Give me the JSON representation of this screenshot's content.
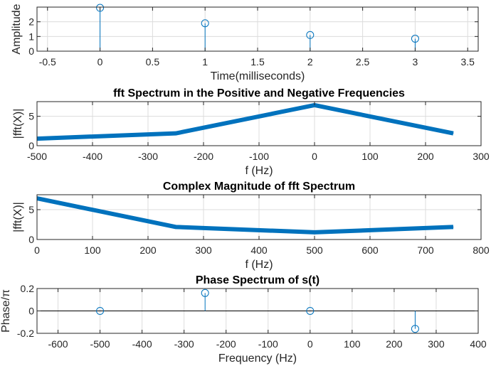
{
  "colors": {
    "series": "#0072bd",
    "grid": "#dcdcdc",
    "axis": "#262626",
    "zero_line": "#000000"
  },
  "chart_data": [
    {
      "type": "stem",
      "title": "",
      "xlabel": "Time(milliseconds)",
      "ylabel": "Amplitude",
      "xlim": [
        -0.6,
        3.6
      ],
      "ylim": [
        0,
        3
      ],
      "xticks": [
        -0.5,
        0,
        0.5,
        1,
        1.5,
        2,
        2.5,
        3,
        3.5
      ],
      "yticks": [
        0,
        1,
        2
      ],
      "xtick_labels": [
        "-0.5",
        "0",
        "0.5",
        "1",
        "1.5",
        "2",
        "2.5",
        "3",
        "3.5"
      ],
      "ytick_labels": [
        "0",
        "1",
        "2"
      ],
      "grid": true,
      "x": [
        0,
        1,
        2,
        3
      ],
      "y": [
        2.95,
        1.9,
        1.1,
        0.85
      ]
    },
    {
      "type": "line",
      "title": "fft Spectrum in the Positive and Negative Frequencies",
      "xlabel": "f (Hz)",
      "ylabel": "|fft(X)|",
      "xlim": [
        -500,
        300
      ],
      "ylim": [
        0,
        7.5
      ],
      "xticks": [
        -500,
        -400,
        -300,
        -200,
        -100,
        0,
        100,
        200,
        300
      ],
      "yticks": [
        0,
        5
      ],
      "xtick_labels": [
        "-500",
        "-400",
        "-300",
        "-200",
        "-100",
        "0",
        "100",
        "200",
        "300"
      ],
      "ytick_labels": [
        "0",
        "5"
      ],
      "grid": true,
      "x": [
        -500,
        -250,
        0,
        250
      ],
      "y": [
        1.2,
        2.1,
        6.9,
        2.1
      ]
    },
    {
      "type": "line",
      "title": "Complex Magnitude of fft Spectrum",
      "xlabel": "f (Hz)",
      "ylabel": "|fft(X)|",
      "xlim": [
        0,
        800
      ],
      "ylim": [
        0,
        7.5
      ],
      "xticks": [
        0,
        100,
        200,
        300,
        400,
        500,
        600,
        700,
        800
      ],
      "yticks": [
        0,
        5
      ],
      "xtick_labels": [
        "0",
        "100",
        "200",
        "300",
        "400",
        "500",
        "600",
        "700",
        "800"
      ],
      "ytick_labels": [
        "0",
        "5"
      ],
      "grid": true,
      "x": [
        0,
        250,
        500,
        750
      ],
      "y": [
        6.9,
        2.1,
        1.2,
        2.1
      ]
    },
    {
      "type": "stem",
      "title": "Phase Spectrum of s(t)",
      "xlabel": "Frequency (Hz)",
      "ylabel": "Phase/π",
      "xlim": [
        -650,
        400
      ],
      "ylim": [
        -0.2,
        0.2
      ],
      "xticks": [
        -600,
        -500,
        -400,
        -300,
        -200,
        -100,
        0,
        100,
        200,
        300,
        400
      ],
      "yticks": [
        -0.2,
        0,
        0.2
      ],
      "xtick_labels": [
        "-600",
        "-500",
        "-400",
        "-300",
        "-200",
        "-100",
        "0",
        "100",
        "200",
        "300",
        "400"
      ],
      "ytick_labels": [
        "-0.2",
        "0",
        "0.2"
      ],
      "grid": true,
      "x": [
        -500,
        -250,
        0,
        250
      ],
      "y": [
        0,
        0.16,
        0,
        -0.16
      ]
    }
  ]
}
